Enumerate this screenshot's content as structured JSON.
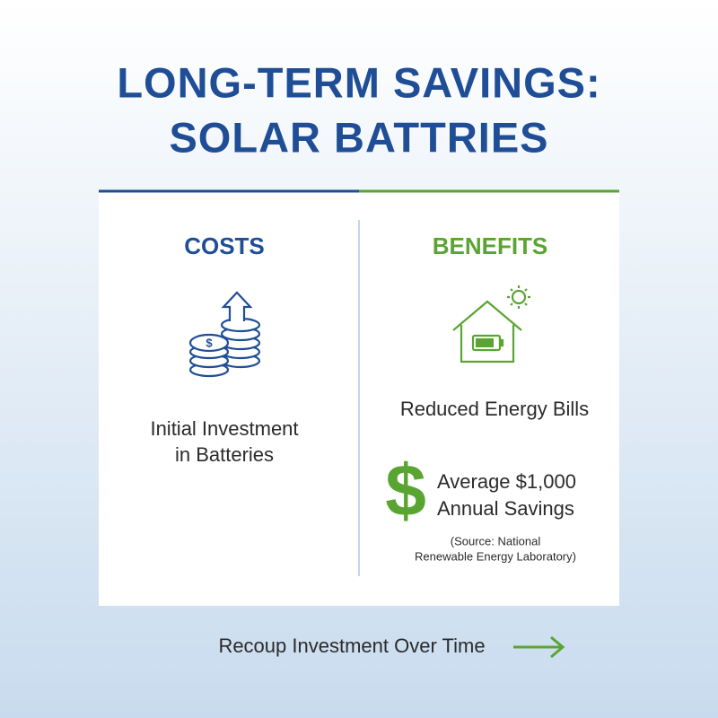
{
  "header": {
    "title_lines": [
      "LONG-TERM SAVINGS:",
      "SOLAR BATTRIES"
    ]
  },
  "costs": {
    "heading": "COSTS",
    "icon_symbol": "$",
    "text_lines": [
      "Initial Investment",
      "in Batteries"
    ]
  },
  "benefits": {
    "heading": "BENEFITS",
    "text": "Reduced Energy Bills",
    "savings": {
      "symbol": "$",
      "lines": [
        "Average $1,000",
        "Annual Savings"
      ]
    },
    "source_lines": [
      "(Source: National",
      "Renewable Energy Laboratory)"
    ]
  },
  "footer": {
    "text": "Recoup Investment Over Time"
  }
}
